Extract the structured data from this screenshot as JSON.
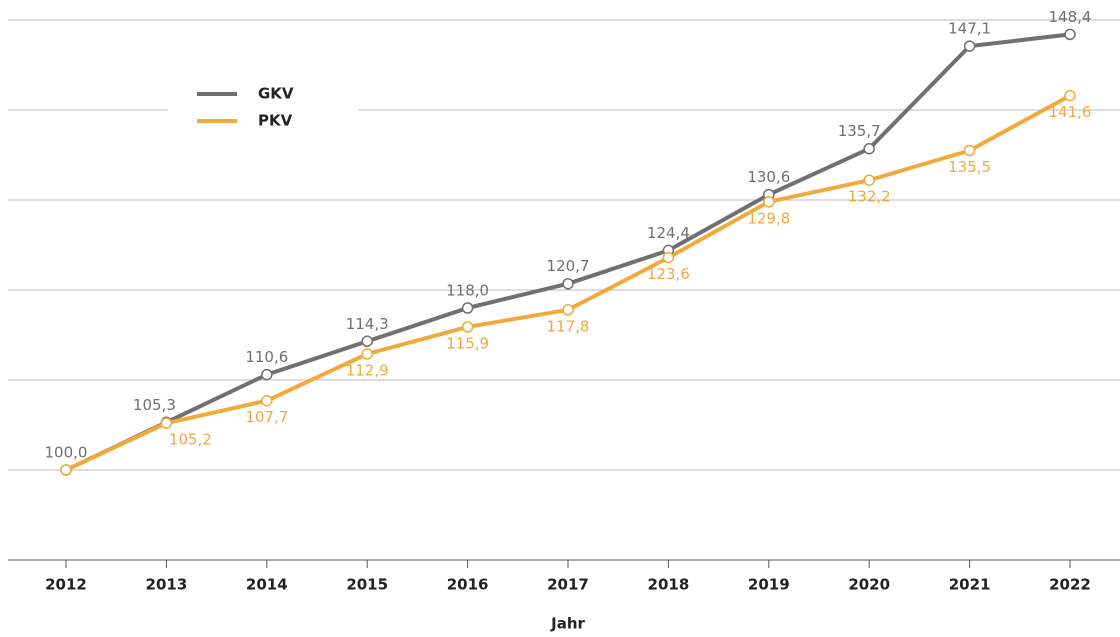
{
  "chart_data": {
    "type": "line",
    "x_label": "Jahr",
    "categories": [
      "2012",
      "2013",
      "2014",
      "2015",
      "2016",
      "2017",
      "2018",
      "2019",
      "2020",
      "2021",
      "2022"
    ],
    "series": [
      {
        "name": "GKV",
        "color": "#707070",
        "values": [
          100.0,
          105.3,
          110.6,
          114.3,
          118.0,
          120.7,
          124.4,
          130.6,
          135.7,
          147.1,
          148.4
        ],
        "value_labels": [
          "100,0",
          "105,3",
          "110,6",
          "114,3",
          "118,0",
          "120,7",
          "124,4",
          "130,6",
          "135,7",
          "147,1",
          "148,4"
        ]
      },
      {
        "name": "PKV",
        "color": "#f2a93b",
        "values": [
          100.0,
          105.2,
          107.7,
          112.9,
          115.9,
          117.8,
          123.6,
          129.8,
          132.2,
          135.5,
          141.6
        ],
        "value_labels": [
          null,
          "105,2",
          "107,7",
          "112,9",
          "115,9",
          "117,8",
          "123,6",
          "129,8",
          "132,2",
          "135,5",
          "141,6"
        ]
      }
    ],
    "ylim": [
      90,
      150
    ],
    "yticks": [
      90,
      100,
      110,
      120,
      130,
      140,
      150
    ],
    "grid": true
  }
}
